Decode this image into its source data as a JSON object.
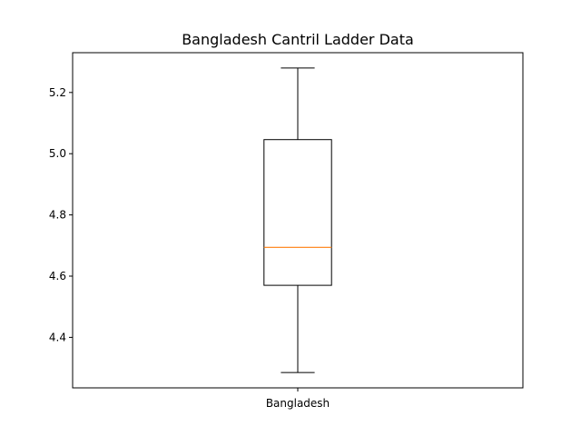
{
  "chart_data": {
    "type": "box",
    "title": "Bangladesh Cantril Ladder Data",
    "xlabel": "",
    "ylabel": "",
    "categories": [
      "Bangladesh"
    ],
    "boxes": [
      {
        "name": "Bangladesh",
        "whisker_low": 4.285,
        "q1": 4.57,
        "median": 4.694,
        "q3": 5.046,
        "whisker_high": 5.28
      }
    ],
    "ylim": [
      4.235,
      5.33
    ],
    "yticks": [
      "4.4",
      "4.6",
      "4.8",
      "5.0",
      "5.2"
    ],
    "ytick_values": [
      4.4,
      4.6,
      4.8,
      5.0,
      5.2
    ],
    "grid": false,
    "colors": {
      "box": "#000000",
      "median": "#ff7f0e",
      "axes": "#000000"
    }
  }
}
